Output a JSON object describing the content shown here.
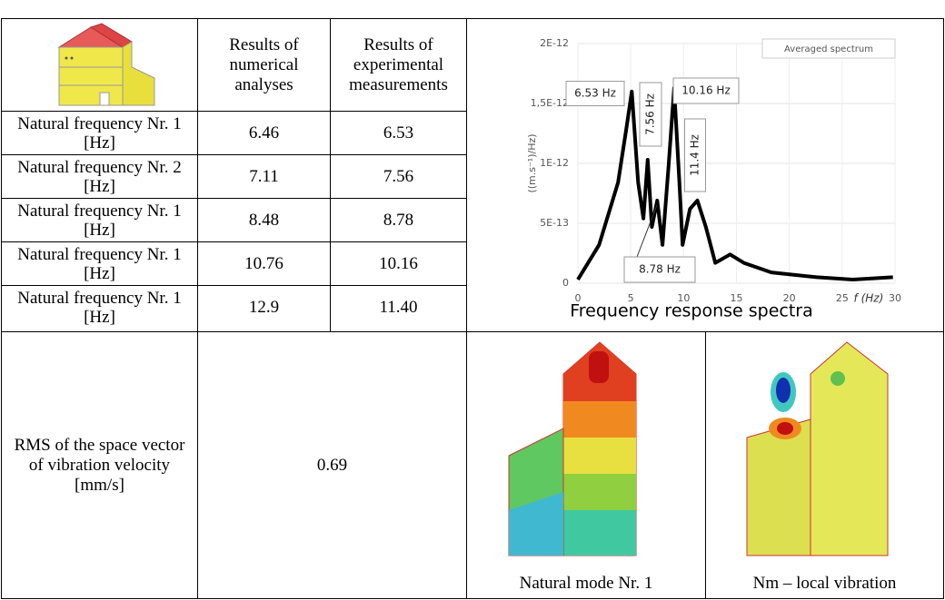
{
  "table": {
    "header": [
      "Results of numerical analyses",
      "Results of experimental measurements"
    ],
    "rows": [
      [
        "Natural frequency Nr. 1 [Hz]",
        "6.46",
        "6.53"
      ],
      [
        "Natural frequency Nr. 2 [Hz]",
        "7.11",
        "7.56"
      ],
      [
        "Natural frequency Nr. 1 [Hz]",
        "8.48",
        "8.78"
      ],
      [
        "Natural frequency Nr. 1 [Hz]",
        "10.76",
        "10.16"
      ],
      [
        "Natural frequency Nr. 1 [Hz]",
        "12.9",
        "11.40"
      ]
    ],
    "rms": {
      "label": "RMS of the space vector of vibration velocity [mm/s]",
      "value": "0.69"
    },
    "image_captions": [
      "Natural mode Nr. 1",
      "Nm – local vibration"
    ]
  },
  "chart_data": {
    "type": "line",
    "caption": "Frequency response spectra",
    "x_label": "f (Hz)",
    "y_label": "((m.s⁻¹)/Hz)",
    "x": [
      0,
      2,
      3.8,
      4.6,
      5.1,
      5.7,
      6.2,
      6.6,
      7.0,
      7.5,
      8.0,
      8.6,
      9.1,
      9.6,
      9.9,
      10.6,
      11.3,
      12.1,
      13.0,
      14.4,
      15.7,
      18.3,
      22.6,
      26,
      29.8
    ],
    "series": [
      {
        "name": "Averaged spectrum",
        "color": "#000000",
        "values": [
          3e-14,
          3.2e-13,
          8.4e-13,
          1.3e-12,
          1.6e-12,
          8.4e-13,
          5.4e-13,
          1.03e-12,
          4.7e-13,
          6.9e-13,
          3.2e-13,
          1e-12,
          1.63e-12,
          8.4e-13,
          3.2e-13,
          6.2e-13,
          6.9e-13,
          4.7e-13,
          1.7e-13,
          2.4e-13,
          1.7e-13,
          9e-14,
          5e-14,
          3e-14,
          5e-14
        ]
      }
    ],
    "annotations": [
      "6.53 Hz",
      "10.16 Hz",
      "7.56 Hz",
      "11.4 Hz",
      "8.78 Hz"
    ],
    "xlim": [
      0,
      30
    ],
    "xticks": [
      0,
      5,
      10,
      15,
      20,
      25,
      30
    ],
    "ylim": [
      0,
      2e-12
    ],
    "yticks": [
      {
        "value": 2e-12,
        "label": "2E-12"
      },
      {
        "value": 1.5e-12,
        "label": "1,5E-12"
      },
      {
        "value": 1e-12,
        "label": "1E-12"
      },
      {
        "value": 5e-13,
        "label": "5E-13"
      },
      0
    ],
    "grid": true,
    "legend": "upper right"
  }
}
